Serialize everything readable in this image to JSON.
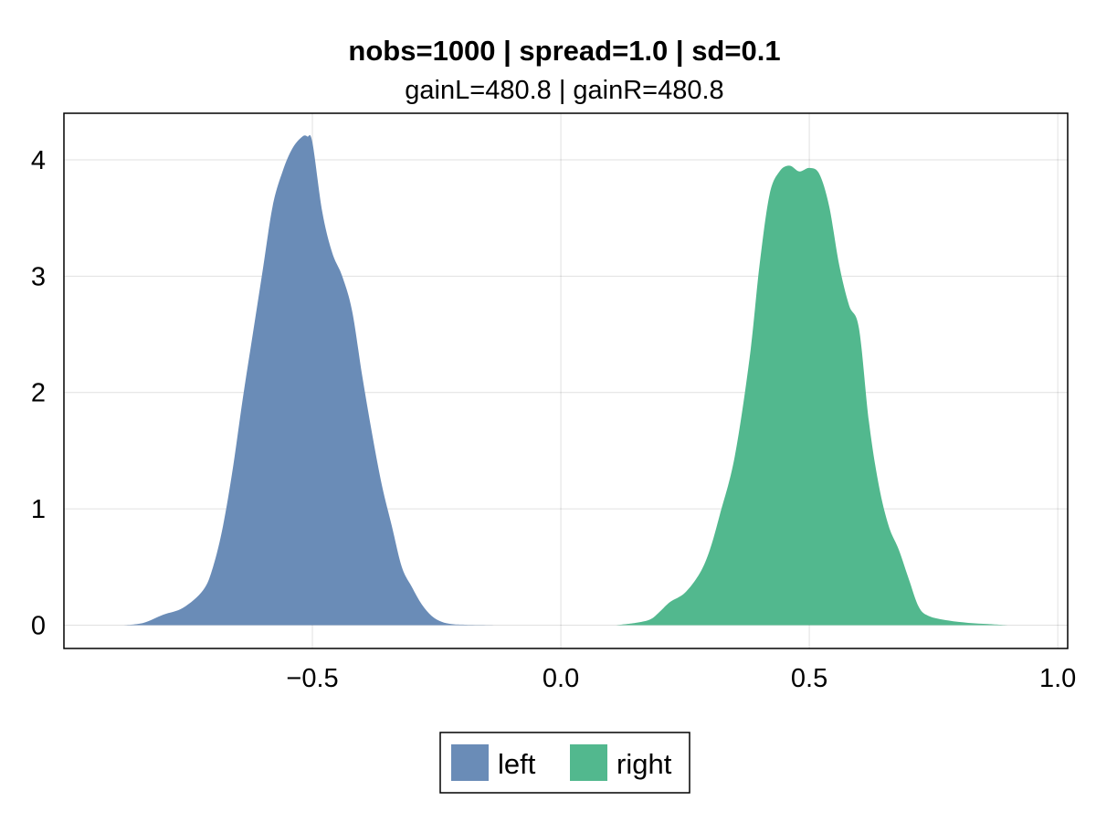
{
  "chart_data": {
    "type": "area",
    "title": "nobs=1000 | spread=1.0 | sd=0.1",
    "subtitle": "gainL=480.8 | gainR=480.8",
    "xlabel": "",
    "ylabel": "",
    "xlim": [
      -1.0,
      1.02
    ],
    "ylim": [
      -0.2,
      4.4
    ],
    "xticks": [
      -0.5,
      0.0,
      0.5,
      1.0
    ],
    "xtick_labels": [
      "−0.5",
      "0.0",
      "0.5",
      "1.0"
    ],
    "yticks": [
      0,
      1,
      2,
      3,
      4
    ],
    "ytick_labels": [
      "0",
      "1",
      "2",
      "3",
      "4"
    ],
    "grid": true,
    "legend_position": "bottom",
    "series": [
      {
        "name": "left",
        "color": "#6a8cb7",
        "x": [
          -0.88,
          -0.84,
          -0.8,
          -0.76,
          -0.72,
          -0.7,
          -0.68,
          -0.66,
          -0.64,
          -0.62,
          -0.6,
          -0.58,
          -0.56,
          -0.54,
          -0.52,
          -0.51,
          -0.5,
          -0.48,
          -0.46,
          -0.44,
          -0.42,
          -0.4,
          -0.38,
          -0.36,
          -0.34,
          -0.32,
          -0.3,
          -0.28,
          -0.26,
          -0.24,
          -0.22,
          -0.2,
          -0.16,
          -0.13
        ],
        "y": [
          0.0,
          0.02,
          0.09,
          0.15,
          0.3,
          0.5,
          0.85,
          1.35,
          1.95,
          2.5,
          3.05,
          3.6,
          3.9,
          4.1,
          4.2,
          4.2,
          4.15,
          3.55,
          3.2,
          3.0,
          2.7,
          2.15,
          1.65,
          1.2,
          0.85,
          0.5,
          0.33,
          0.18,
          0.08,
          0.03,
          0.01,
          0.005,
          0.002,
          0.0
        ]
      },
      {
        "name": "right",
        "color": "#52b88e",
        "x": [
          0.11,
          0.15,
          0.18,
          0.2,
          0.22,
          0.25,
          0.28,
          0.3,
          0.32,
          0.35,
          0.38,
          0.4,
          0.42,
          0.44,
          0.46,
          0.48,
          0.5,
          0.52,
          0.54,
          0.56,
          0.58,
          0.6,
          0.62,
          0.64,
          0.66,
          0.68,
          0.7,
          0.72,
          0.74,
          0.78,
          0.82,
          0.86,
          0.9
        ],
        "y": [
          0.0,
          0.02,
          0.05,
          0.12,
          0.2,
          0.28,
          0.45,
          0.65,
          0.95,
          1.45,
          2.3,
          3.1,
          3.7,
          3.9,
          3.95,
          3.9,
          3.93,
          3.88,
          3.6,
          3.1,
          2.75,
          2.55,
          1.75,
          1.2,
          0.85,
          0.65,
          0.4,
          0.16,
          0.08,
          0.04,
          0.02,
          0.01,
          0.0
        ]
      }
    ]
  }
}
